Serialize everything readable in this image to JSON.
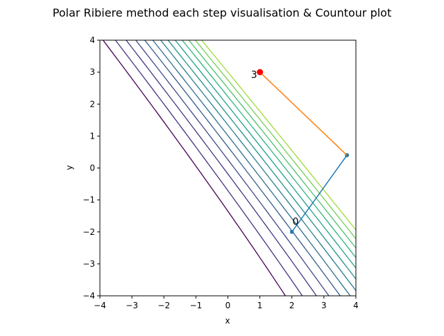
{
  "chart_data": {
    "type": "line",
    "title": "Polar Ribiere method each step visualisation & Countour plot",
    "xlabel": "x",
    "ylabel": "y",
    "xlim": [
      -4,
      4
    ],
    "ylim": [
      -4,
      4
    ],
    "grid": false,
    "xticks": [
      -4,
      -3,
      -2,
      -1,
      0,
      1,
      2,
      3,
      4
    ],
    "yticks": [
      -4,
      -3,
      -2,
      -1,
      0,
      1,
      2,
      3,
      4
    ],
    "xtick_labels": [
      "−4",
      "−3",
      "−2",
      "−1",
      "0",
      "1",
      "2",
      "3",
      "4"
    ],
    "ytick_labels": [
      "−4",
      "−3",
      "−2",
      "−1",
      "0",
      "1",
      "2",
      "3",
      "4"
    ],
    "contours": {
      "colormap": "viridis",
      "levels": [
        {
          "c": 0.4,
          "color": "#440154"
        },
        {
          "c": 2.0,
          "color": "#46327e"
        },
        {
          "c": 3.45,
          "color": "#453781"
        },
        {
          "c": 4.8,
          "color": "#3f4889"
        },
        {
          "c": 6.1,
          "color": "#365c8d"
        },
        {
          "c": 7.3,
          "color": "#2e6e8e"
        },
        {
          "c": 8.5,
          "color": "#277f8e"
        },
        {
          "c": 9.65,
          "color": "#21918c"
        },
        {
          "c": 10.8,
          "color": "#1fa187"
        },
        {
          "c": 11.95,
          "color": "#2db27d"
        },
        {
          "c": 13.05,
          "color": "#4ac16d"
        },
        {
          "c": 14.15,
          "color": "#73d056"
        },
        {
          "c": 15.25,
          "color": "#a0da39"
        }
      ]
    },
    "series": [
      {
        "color": "#1f77b4",
        "x": [
          2.0,
          3.72
        ],
        "y": [
          -2.0,
          0.4
        ]
      },
      {
        "color": "#ff7f0e",
        "x": [
          3.72,
          1.0
        ],
        "y": [
          0.4,
          3.0
        ]
      }
    ],
    "start_point": {
      "x": 2.0,
      "y": -2.0,
      "color": "#1f77b4"
    },
    "final_point": {
      "x": 1.0,
      "y": 3.0,
      "color": "#ff0000"
    },
    "annotations": [
      {
        "text": "0",
        "x": 2.02,
        "y": -1.78
      },
      {
        "text": "3",
        "x": 0.72,
        "y": 2.82
      }
    ]
  }
}
